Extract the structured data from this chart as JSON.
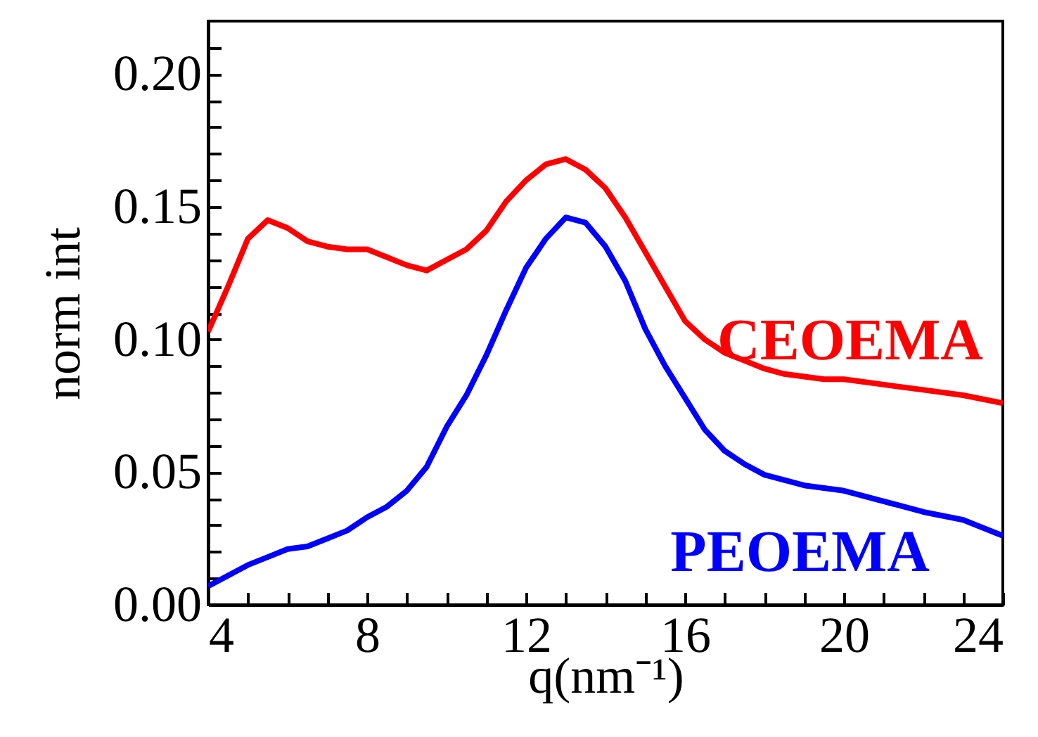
{
  "chart_data": {
    "type": "line",
    "xlabel": "q(nm⁻¹)",
    "ylabel": "norm int",
    "x": [
      4,
      4.5,
      5,
      5.5,
      6,
      6.5,
      7,
      7.5,
      8,
      8.5,
      9,
      9.5,
      10,
      10.5,
      11,
      11.5,
      12,
      12.5,
      13,
      13.5,
      14,
      14.5,
      15,
      15.5,
      16,
      16.5,
      17,
      17.5,
      18,
      18.5,
      19,
      19.5,
      20,
      21,
      22,
      23,
      24
    ],
    "series": [
      {
        "name": "CEOEMA",
        "color": "#ff0000",
        "values": [
          0.103,
          0.12,
          0.138,
          0.145,
          0.142,
          0.137,
          0.135,
          0.134,
          0.134,
          0.131,
          0.128,
          0.126,
          0.13,
          0.134,
          0.141,
          0.152,
          0.16,
          0.166,
          0.168,
          0.164,
          0.157,
          0.146,
          0.133,
          0.12,
          0.107,
          0.1,
          0.095,
          0.092,
          0.089,
          0.087,
          0.086,
          0.085,
          0.085,
          0.083,
          0.081,
          0.079,
          0.076
        ]
      },
      {
        "name": "PEOEMA",
        "color": "#0000ff",
        "values": [
          0.007,
          0.011,
          0.015,
          0.018,
          0.021,
          0.022,
          0.025,
          0.028,
          0.033,
          0.037,
          0.043,
          0.052,
          0.067,
          0.079,
          0.094,
          0.111,
          0.127,
          0.138,
          0.146,
          0.144,
          0.135,
          0.122,
          0.104,
          0.09,
          0.078,
          0.066,
          0.058,
          0.053,
          0.049,
          0.047,
          0.045,
          0.044,
          0.043,
          0.039,
          0.035,
          0.032,
          0.026
        ]
      }
    ],
    "xlim": [
      4,
      24
    ],
    "xticks": [
      4,
      {
        "value": 5,
        "label": null
      },
      {
        "value": 6,
        "label": null
      },
      {
        "value": 7,
        "label": null
      },
      8,
      {
        "value": 9,
        "label": null
      },
      {
        "value": 10,
        "label": null
      },
      {
        "value": 11,
        "label": null
      },
      12,
      {
        "value": 13,
        "label": null
      },
      {
        "value": 14,
        "label": null
      },
      {
        "value": 15,
        "label": null
      },
      16,
      {
        "value": 17,
        "label": null
      },
      {
        "value": 18,
        "label": null
      },
      {
        "value": 19,
        "label": null
      },
      20,
      {
        "value": 21,
        "label": null
      },
      {
        "value": 22,
        "label": null
      },
      {
        "value": 23,
        "label": null
      },
      24
    ],
    "ylim": [
      0,
      0.22
    ],
    "yticks": [
      {
        "value": 0,
        "label": "0.00"
      },
      {
        "value": 0.01,
        "label": null
      },
      {
        "value": 0.02,
        "label": null
      },
      {
        "value": 0.03,
        "label": null
      },
      {
        "value": 0.04,
        "label": null
      },
      {
        "value": 0.05,
        "label": "0.05"
      },
      {
        "value": 0.06,
        "label": null
      },
      {
        "value": 0.07,
        "label": null
      },
      {
        "value": 0.08,
        "label": null
      },
      {
        "value": 0.09,
        "label": null
      },
      {
        "value": 0.1,
        "label": "0.10"
      },
      {
        "value": 0.11,
        "label": null
      },
      {
        "value": 0.12,
        "label": null
      },
      {
        "value": 0.13,
        "label": null
      },
      {
        "value": 0.14,
        "label": null
      },
      {
        "value": 0.15,
        "label": "0.15"
      },
      {
        "value": 0.16,
        "label": null
      },
      {
        "value": 0.17,
        "label": null
      },
      {
        "value": 0.18,
        "label": null
      },
      {
        "value": 0.19,
        "label": null
      },
      {
        "value": 0.2,
        "label": "0.20"
      },
      {
        "value": 0.21,
        "label": null
      }
    ],
    "grid": false,
    "marker": "none",
    "line_style": "solid"
  }
}
